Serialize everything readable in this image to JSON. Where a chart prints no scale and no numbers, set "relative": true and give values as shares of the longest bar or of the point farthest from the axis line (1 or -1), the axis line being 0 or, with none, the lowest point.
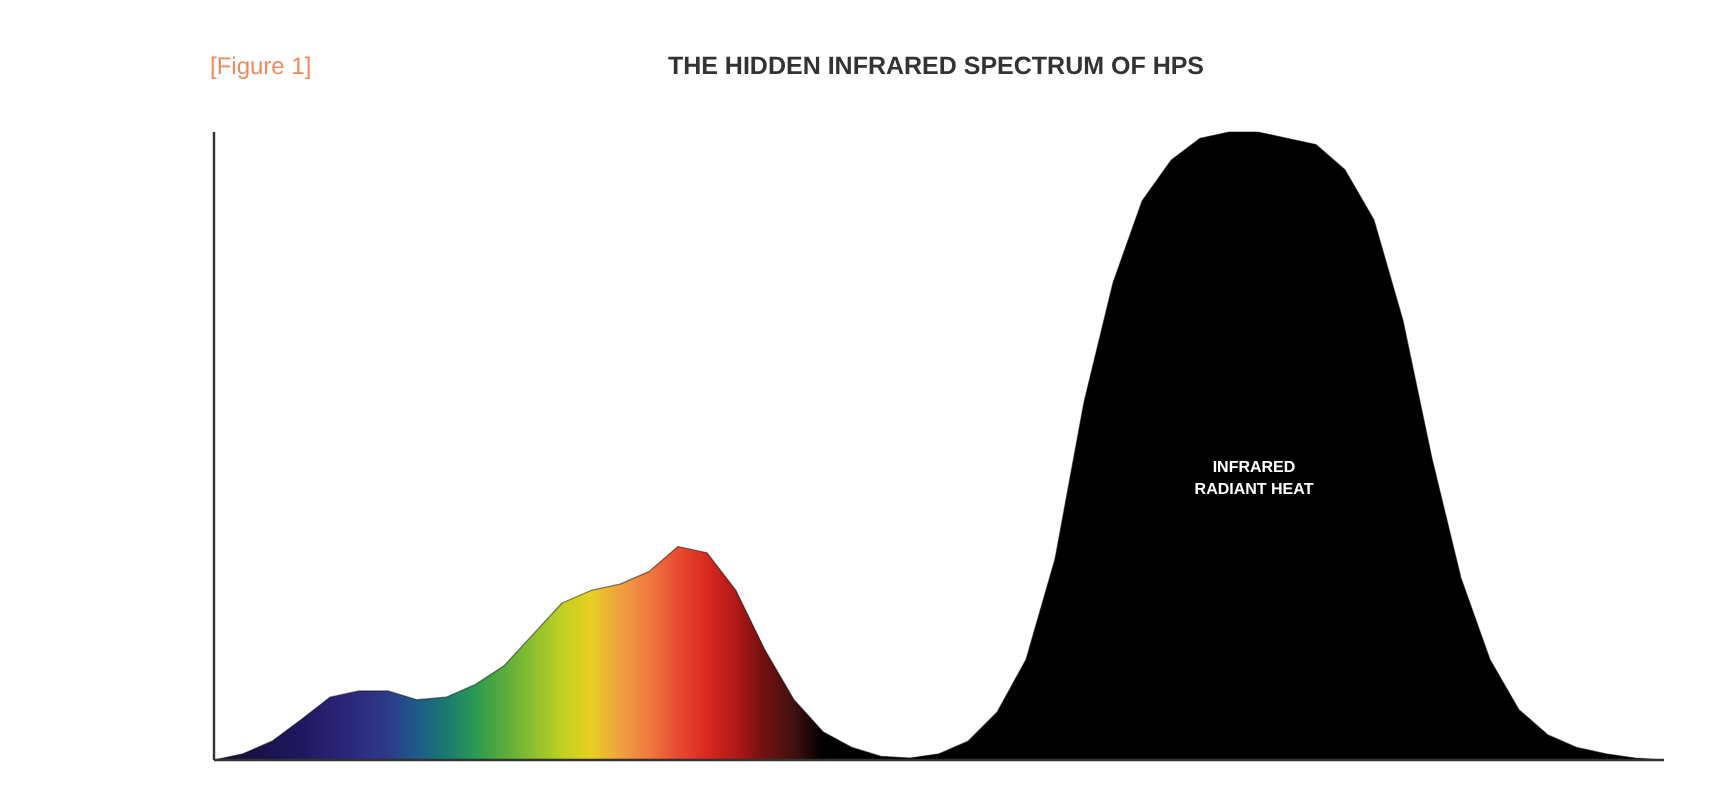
{
  "chart_data": {
    "type": "area",
    "title": "THE HIDDEN INFRARED SPECTRUM OF HPS",
    "relative": true,
    "annotations": [
      "[Figure 1]",
      "INFRARED\nRADIANT HEAT"
    ],
    "categories": [
      null,
      null,
      null,
      null,
      null,
      null,
      null,
      null,
      null,
      null,
      null,
      null,
      null,
      null,
      null,
      null,
      null,
      null,
      null,
      null,
      null,
      null,
      null,
      null,
      null,
      null,
      null,
      null,
      null,
      null,
      null,
      null,
      null,
      null,
      null,
      null,
      null,
      null,
      null,
      null,
      null,
      null,
      null,
      null,
      null,
      null,
      null,
      null,
      null,
      null,
      null
    ],
    "series": [
      {
        "color": "#000000",
        "values": [
          0,
          0.01,
          0.03,
          0.064,
          0.1,
          0.11,
          0.11,
          0.096,
          0.1,
          0.12,
          0.15,
          0.2,
          0.25,
          0.27,
          0.28,
          0.3,
          0.34,
          0.33,
          0.27,
          0.175,
          0.096,
          0.045,
          0.02,
          0.006,
          0.003,
          0.01,
          0.03,
          0.076,
          0.16,
          0.32,
          0.57,
          0.76,
          0.89,
          0.955,
          0.99,
          1,
          1,
          0.99,
          0.98,
          0.94,
          0.86,
          0.7,
          0.48,
          0.29,
          0.16,
          0.08,
          0.04,
          0.02,
          0.01,
          0.003,
          0
        ],
        "colors": [
          "#1a1040",
          "#1a1040",
          "#1c1450",
          "#1f1860",
          "#2a2070",
          "#2c2c80",
          "#2d3a8a",
          "#1e5a8a",
          "#1a7a70",
          "#2a9a50",
          "#5aac3a",
          "#8ac030",
          "#c0d020",
          "#e8d020",
          "#f0a040",
          "#f07a40",
          "#e84a30",
          "#d82a20",
          "#b01818",
          "#701010",
          "#401010",
          "#000000",
          "#000000",
          "#000000",
          "#000000",
          "#000000",
          "#000000",
          "#000000",
          "#000000",
          "#000000",
          "#000000",
          "#000000",
          "#000000",
          "#000000",
          "#000000",
          "#000000",
          "#000000",
          "#000000",
          "#000000",
          "#000000",
          "#000000",
          "#000000",
          "#000000",
          "#000000",
          "#000000",
          "#000000",
          "#000000",
          "#000000",
          "#000000",
          "#000000",
          "#000000"
        ]
      }
    ]
  }
}
